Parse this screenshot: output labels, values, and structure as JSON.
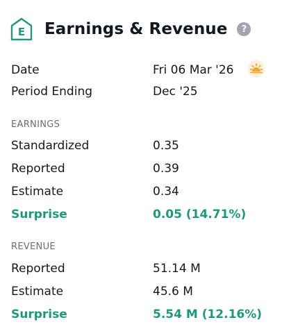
{
  "header": {
    "badge_letter": "E",
    "title": "Earnings & Revenue",
    "help_symbol": "?"
  },
  "info": {
    "date_label": "Date",
    "date_value": "Fri 06 Mar '26",
    "time_icon": "sun-icon",
    "period_label": "Period Ending",
    "period_value": "Dec '25"
  },
  "earnings": {
    "section_title": "EARNINGS",
    "rows": [
      {
        "label": "Standardized",
        "value": "0.35"
      },
      {
        "label": "Reported",
        "value": "0.39"
      },
      {
        "label": "Estimate",
        "value": "0.34"
      }
    ],
    "surprise_label": "Surprise",
    "surprise_value": "0.05 (14.71%)"
  },
  "revenue": {
    "section_title": "REVENUE",
    "rows": [
      {
        "label": "Reported",
        "value": "51.14 M"
      },
      {
        "label": "Estimate",
        "value": "45.6 M"
      }
    ],
    "surprise_label": "Surprise",
    "surprise_value": "5.54 M (12.16%)"
  },
  "colors": {
    "accent": "#1b9a7b",
    "text": "#131722",
    "muted": "#6a6d78",
    "help": "#a3a6af",
    "sun": "#f4a62a"
  }
}
